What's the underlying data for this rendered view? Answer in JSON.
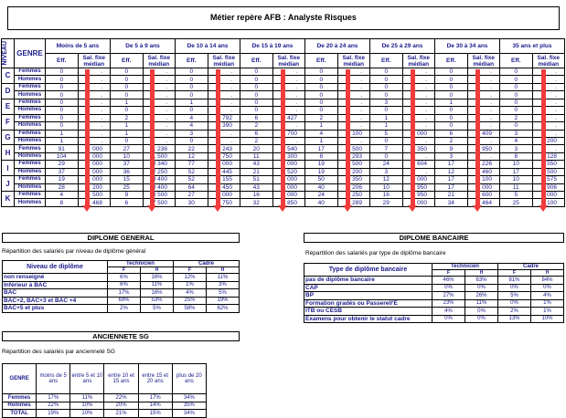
{
  "title": "Métier repère AFB : Analyste Risques",
  "main": {
    "niveau_label": "NIVEAU",
    "genre_label": "GENRE",
    "groups": [
      "Moins de 5 ans",
      "De 5 à 9 ans",
      "De 10 à 14 ans",
      "De 15 à 19 ans",
      "De 20 à 24 ans",
      "De 25 à 29 ans",
      "De 30 à 34 ans",
      "35 ans et plus"
    ],
    "eff_label": "Eff.",
    "sal_label": "Sal. fixe médian",
    "levels": [
      {
        "level": "C",
        "rows": [
          {
            "genre": "Femmes",
            "cells": [
              [
                "0",
                "."
              ],
              [
                "0",
                "."
              ],
              [
                "0",
                "."
              ],
              [
                "0",
                "."
              ],
              [
                "0",
                "."
              ],
              [
                "0",
                "."
              ],
              [
                "0",
                "."
              ],
              [
                "0",
                "."
              ]
            ]
          },
          {
            "genre": "Hommes",
            "cells": [
              [
                "0",
                "."
              ],
              [
                "0",
                "."
              ],
              [
                "0",
                "."
              ],
              [
                "0",
                "."
              ],
              [
                "0",
                "."
              ],
              [
                "0",
                "."
              ],
              [
                "0",
                "."
              ],
              [
                "0",
                "."
              ]
            ]
          }
        ]
      },
      {
        "level": "D",
        "rows": [
          {
            "genre": "Femmes",
            "cells": [
              [
                "0",
                "."
              ],
              [
                "0",
                "."
              ],
              [
                "0",
                "."
              ],
              [
                "0",
                "."
              ],
              [
                "0",
                "."
              ],
              [
                "0",
                "."
              ],
              [
                "0",
                "."
              ],
              [
                "0",
                "."
              ]
            ]
          },
          {
            "genre": "Hommes",
            "cells": [
              [
                "0",
                "."
              ],
              [
                "0",
                "."
              ],
              [
                "0",
                "."
              ],
              [
                "0",
                "."
              ],
              [
                "0",
                "."
              ],
              [
                "0",
                "."
              ],
              [
                "0",
                "."
              ],
              [
                "0",
                "."
              ]
            ]
          }
        ]
      },
      {
        "level": "E",
        "rows": [
          {
            "genre": "Femmes",
            "cells": [
              [
                "0",
                "."
              ],
              [
                "1",
                "."
              ],
              [
                "1",
                "."
              ],
              [
                "0",
                "."
              ],
              [
                "0",
                "."
              ],
              [
                "3",
                "."
              ],
              [
                "1",
                "."
              ],
              [
                "0",
                "."
              ]
            ]
          },
          {
            "genre": "Hommes",
            "cells": [
              [
                "0",
                "."
              ],
              [
                "0",
                "."
              ],
              [
                "0",
                "."
              ],
              [
                "0",
                "."
              ],
              [
                "0",
                "."
              ],
              [
                "0",
                "."
              ],
              [
                "0",
                "."
              ],
              [
                "0",
                "."
              ]
            ]
          }
        ]
      },
      {
        "level": "F",
        "rows": [
          {
            "genre": "Femmes",
            "cells": [
              [
                "0",
                "."
              ],
              [
                "2",
                "."
              ],
              [
                "4",
                "792"
              ],
              [
                "6",
                "427"
              ],
              [
                "2",
                "."
              ],
              [
                "1",
                "."
              ],
              [
                "0",
                "."
              ],
              [
                "2",
                "."
              ]
            ]
          },
          {
            "genre": "Hommes",
            "cells": [
              [
                "0",
                "."
              ],
              [
                "1",
                "."
              ],
              [
                "4",
                "390"
              ],
              [
                "2",
                "."
              ],
              [
                "1",
                "."
              ],
              [
                "1",
                "."
              ],
              [
                "0",
                "."
              ],
              [
                "0",
                "."
              ]
            ]
          }
        ]
      },
      {
        "level": "G",
        "rows": [
          {
            "genre": "Femmes",
            "cells": [
              [
                "1",
                "."
              ],
              [
                "1",
                "."
              ],
              [
                "3",
                "."
              ],
              [
                "6",
                "700"
              ],
              [
                "4",
                "100"
              ],
              [
                "5",
                "000"
              ],
              [
                "6",
                "409"
              ],
              [
                "3",
                "."
              ]
            ]
          },
          {
            "genre": "Hommes",
            "cells": [
              [
                "1",
                "."
              ],
              [
                "0",
                "."
              ],
              [
                "0",
                "."
              ],
              [
                "2",
                "."
              ],
              [
                "1",
                "."
              ],
              [
                "0",
                "."
              ],
              [
                "2",
                "."
              ],
              [
                "4",
                "200"
              ]
            ]
          }
        ]
      },
      {
        "level": "H",
        "rows": [
          {
            "genre": "Femmes",
            "cells": [
              [
                "91",
                "000"
              ],
              [
                "27",
                "1 236"
              ],
              [
                "22",
                "243"
              ],
              [
                "20",
                "540"
              ],
              [
                "17",
                "500"
              ],
              [
                "7",
                "350"
              ],
              [
                "9",
                "950"
              ],
              [
                "3",
                "."
              ]
            ]
          },
          {
            "genre": "Hommes",
            "cells": [
              [
                "104",
                "000"
              ],
              [
                "10",
                "1 500"
              ],
              [
                "12",
                "750"
              ],
              [
                "11",
                "300"
              ],
              [
                "8",
                "293"
              ],
              [
                "0",
                "."
              ],
              [
                "3",
                "."
              ],
              [
                "8",
                "128"
              ]
            ]
          }
        ]
      },
      {
        "level": "I",
        "rows": [
          {
            "genre": "Femmes",
            "cells": [
              [
                "29",
                "000"
              ],
              [
                "37",
                "0 340"
              ],
              [
                "77",
                "000"
              ],
              [
                "43",
                "000"
              ],
              [
                "19",
                "500"
              ],
              [
                "24",
                "604"
              ],
              [
                "17",
                "226"
              ],
              [
                "10",
                "550"
              ]
            ]
          },
          {
            "genre": "Hommes",
            "cells": [
              [
                "37",
                "000"
              ],
              [
                "36",
                "2 250"
              ],
              [
                "52",
                "445"
              ],
              [
                "21",
                "520"
              ],
              [
                "19",
                "200"
              ],
              [
                "3",
                "."
              ],
              [
                "12",
                "460"
              ],
              [
                "17",
                "500"
              ]
            ]
          }
        ]
      },
      {
        "level": "J",
        "rows": [
          {
            "genre": "Femmes",
            "cells": [
              [
                "19",
                "000"
              ],
              [
                "15",
                "8 400"
              ],
              [
                "52",
                "155"
              ],
              [
                "51",
                "000"
              ],
              [
                "50",
                "350"
              ],
              [
                "12",
                "000"
              ],
              [
                "17",
                "100"
              ],
              [
                "10",
                "575"
              ]
            ]
          },
          {
            "genre": "Hommes",
            "cells": [
              [
                "28",
                "200"
              ],
              [
                "25",
                "3 400"
              ],
              [
                "64",
                "450"
              ],
              [
                "43",
                "000"
              ],
              [
                "40",
                "206"
              ],
              [
                "10",
                "950"
              ],
              [
                "17",
                "000"
              ],
              [
                "11",
                "906"
              ]
            ]
          }
        ]
      },
      {
        "level": "K",
        "rows": [
          {
            "genre": "Femmes",
            "cells": [
              [
                "4",
                "500"
              ],
              [
                "9",
                "8 500"
              ],
              [
                "27",
                "000"
              ],
              [
                "16",
                "000"
              ],
              [
                "24",
                "250"
              ],
              [
                "16",
                "950"
              ],
              [
                "21",
                "600"
              ],
              [
                "5",
                "000"
              ]
            ]
          },
          {
            "genre": "Hommes",
            "cells": [
              [
                "8",
                "468"
              ],
              [
                "6",
                "7 500"
              ],
              [
                "30",
                "750"
              ],
              [
                "32",
                "850"
              ],
              [
                "40",
                "289"
              ],
              [
                "29",
                "000"
              ],
              [
                "34",
                "464"
              ],
              [
                "25",
                "100"
              ]
            ]
          }
        ]
      }
    ],
    "overlay_color": "#f03c3c"
  },
  "diplome_general": {
    "section": "DIPLOME GENERAL",
    "subtitle": "Répartition des salariés par niveau de diplôme général",
    "col_label": "Niveau de diplôme",
    "technicien": "Technicien",
    "cadre": "Cadre",
    "f": "F",
    "h": "H",
    "rows": [
      {
        "label": "non renseigné",
        "values": [
          "6%",
          "16%",
          "12%",
          "11%"
        ]
      },
      {
        "label": "Inférieur à BAC",
        "values": [
          "6%",
          "11%",
          "1%",
          "3%"
        ]
      },
      {
        "label": "BAC",
        "values": [
          "17%",
          "16%",
          "4%",
          "5%"
        ]
      },
      {
        "label": "BAC+2, BAC+3 et BAC +4",
        "values": [
          "69%",
          "53%",
          "25%",
          "19%"
        ]
      },
      {
        "label": "BAC+5 et plus",
        "values": [
          "2%",
          "5%",
          "58%",
          "62%"
        ]
      }
    ]
  },
  "diplome_bancaire": {
    "section": "DIPLOME BANCAIRE",
    "subtitle": "Répartition des salariés par type de diplôme bancaire",
    "col_label": "Type de diplôme bancaire",
    "technicien": "Technicien",
    "cadre": "Cadre",
    "f": "F",
    "h": "H",
    "rows": [
      {
        "label": "pas de diplôme bancaire",
        "values": [
          "46%",
          "63%",
          "81%",
          "84%"
        ]
      },
      {
        "label": "CAP",
        "values": [
          "0%",
          "0%",
          "0%",
          "0%"
        ]
      },
      {
        "label": "BP",
        "values": [
          "27%",
          "26%",
          "5%",
          "4%"
        ]
      },
      {
        "label": "Formation gradés ou Passerell'E",
        "values": [
          "23%",
          "11%",
          "0%",
          "1%"
        ]
      },
      {
        "label": "ITB ou CESB",
        "values": [
          "4%",
          "0%",
          "2%",
          "1%"
        ]
      },
      {
        "label": "Examens pour obtenir le statut cadre",
        "values": [
          "0%",
          "0%",
          "13%",
          "10%"
        ]
      }
    ]
  },
  "anciennete": {
    "section": "ANCIENNETE SG",
    "subtitle": "Répartition des salariés par ancienneté SG",
    "genre_label": "GENRE",
    "columns": [
      "moins de 5 ans",
      "entre 5 et 10 ans",
      "entre 10 et 15 ans",
      "entre 15 et 20 ans",
      "plus de 20 ans"
    ],
    "rows": [
      {
        "label": "Femmes",
        "values": [
          "17%",
          "11%",
          "22%",
          "17%",
          "34%"
        ]
      },
      {
        "label": "Hommes",
        "values": [
          "22%",
          "10%",
          "20%",
          "14%",
          "35%"
        ]
      },
      {
        "label": "TOTAL",
        "values": [
          "19%",
          "10%",
          "21%",
          "15%",
          "34%"
        ]
      }
    ]
  }
}
